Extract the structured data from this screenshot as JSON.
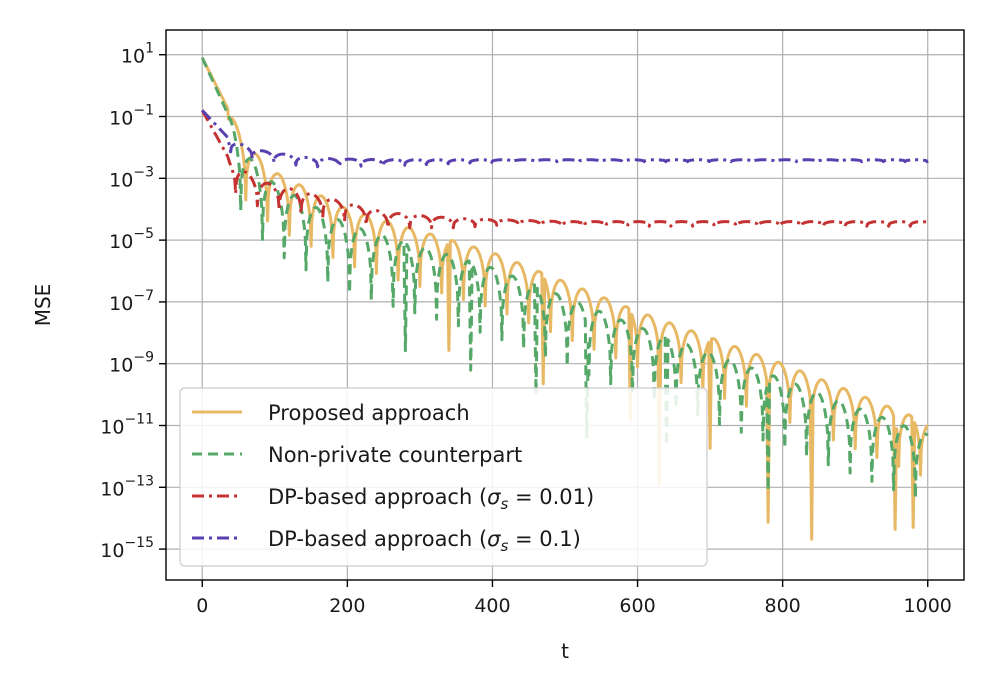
{
  "chart_data": {
    "type": "line",
    "title": "",
    "xlabel": "t",
    "ylabel": "MSE",
    "xlim": [
      -50,
      1050
    ],
    "ylim_log10": [
      -16.0,
      1.8
    ],
    "yscale": "log",
    "grid": true,
    "legend_position": "lower-left",
    "x_ticks": [
      {
        "value": 0,
        "label": "0"
      },
      {
        "value": 200,
        "label": "200"
      },
      {
        "value": 400,
        "label": "400"
      },
      {
        "value": 600,
        "label": "600"
      },
      {
        "value": 800,
        "label": "800"
      },
      {
        "value": 1000,
        "label": "1000"
      }
    ],
    "y_ticks": [
      {
        "exp": 1,
        "base": "10",
        "power": "1"
      },
      {
        "exp": -1,
        "base": "10",
        "power": "−1"
      },
      {
        "exp": -3,
        "base": "10",
        "power": "−3"
      },
      {
        "exp": -5,
        "base": "10",
        "power": "−5"
      },
      {
        "exp": -7,
        "base": "10",
        "power": "−7"
      },
      {
        "exp": -9,
        "base": "10",
        "power": "−9"
      },
      {
        "exp": -11,
        "base": "10",
        "power": "−11"
      },
      {
        "exp": -13,
        "base": "10",
        "power": "−13"
      },
      {
        "exp": -15,
        "base": "10",
        "power": "−15"
      }
    ],
    "series": [
      {
        "name": "Proposed approach",
        "color": "#e8b964",
        "dash": "solid",
        "note": "log10(MSE) decays from about 0.9 at t=0 to about -11 at t=1000 with periodic dips (period ~30)",
        "start_log10": 0.9,
        "envelope_points": [
          [
            0,
            0.9
          ],
          [
            60,
            -1.9
          ],
          [
            100,
            -2.8
          ],
          [
            200,
            -4.0
          ],
          [
            400,
            -5.4
          ],
          [
            600,
            -7.3
          ],
          [
            800,
            -9.0
          ],
          [
            1000,
            -10.9
          ]
        ],
        "oscillation_period": 30,
        "dip_depth": 1.8,
        "deep_dips_t": [
          340,
          470,
          590,
          630,
          700,
          780,
          840,
          955,
          980
        ]
      },
      {
        "name": "Non-private counterpart",
        "color": "#55a868",
        "dash": "dashed",
        "note": "tracks the proposed approach roughly 0.5 decade lower with deep dips",
        "start_log10": 0.9,
        "envelope_points": [
          [
            0,
            0.9
          ],
          [
            60,
            -2.2
          ],
          [
            100,
            -3.2
          ],
          [
            200,
            -4.5
          ],
          [
            400,
            -5.9
          ],
          [
            600,
            -7.8
          ],
          [
            800,
            -9.5
          ],
          [
            1000,
            -11.3
          ]
        ],
        "oscillation_period": 30,
        "dip_depth": 2.2,
        "deep_dips_t": [
          280,
          370,
          460,
          530,
          640,
          780
        ]
      },
      {
        "name": "DP-based approach (σs = 0.01)",
        "label_main": "DP-based approach (",
        "label_symbol": "σ",
        "label_sub": "s",
        "label_tail": " = 0.01)",
        "color": "#c43232",
        "dash": "dashdot",
        "start_log10": -0.8,
        "plateau_log10": -4.4,
        "envelope_points": [
          [
            0,
            -0.8
          ],
          [
            40,
            -2.5
          ],
          [
            80,
            -3.1
          ],
          [
            150,
            -3.5
          ],
          [
            250,
            -4.1
          ],
          [
            350,
            -4.3
          ],
          [
            500,
            -4.4
          ],
          [
            1000,
            -4.4
          ]
        ],
        "oscillation_period": 30,
        "dip_depth": 1.0
      },
      {
        "name": "DP-based approach (σs = 0.1)",
        "label_main": "DP-based approach (",
        "label_symbol": "σ",
        "label_sub": "s",
        "label_tail": " = 0.1)",
        "color": "#5a3fb0",
        "dash": "dashdot",
        "start_log10": -0.8,
        "plateau_log10": -2.4,
        "envelope_points": [
          [
            0,
            -0.8
          ],
          [
            40,
            -1.8
          ],
          [
            80,
            -2.1
          ],
          [
            150,
            -2.35
          ],
          [
            250,
            -2.4
          ],
          [
            1000,
            -2.4
          ]
        ],
        "oscillation_period": 30,
        "dip_depth": 0.4
      }
    ]
  }
}
